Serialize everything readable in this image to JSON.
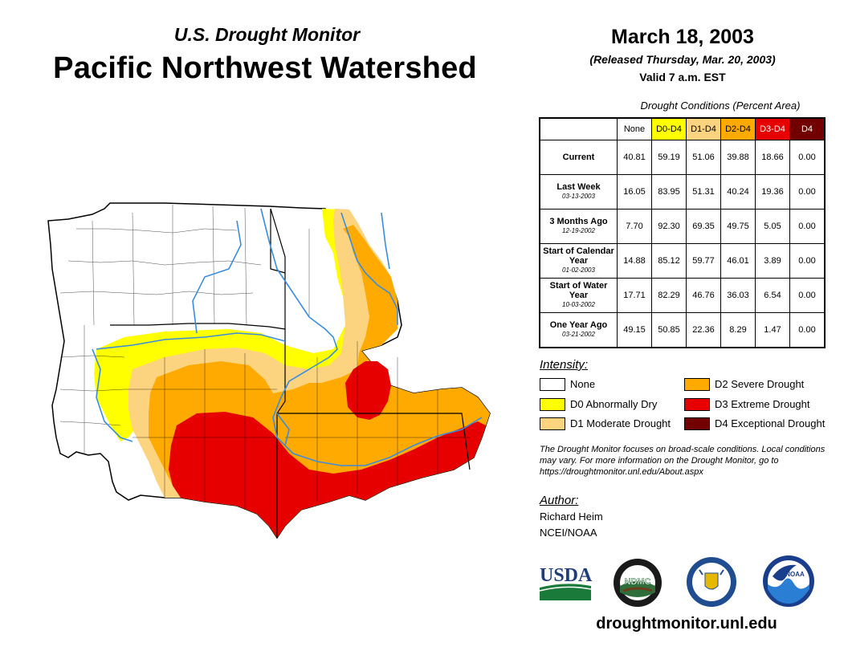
{
  "header": {
    "subtitle": "U.S. Drought Monitor",
    "title": "Pacific Northwest Watershed",
    "date": "March 18, 2003",
    "released": "(Released Thursday, Mar. 20, 2003)",
    "valid": "Valid 7 a.m. EST"
  },
  "stats_table": {
    "caption": "Drought Conditions (Percent Area)",
    "columns": [
      "None",
      "D0-D4",
      "D1-D4",
      "D2-D4",
      "D3-D4",
      "D4"
    ],
    "column_colors": [
      "#ffffff",
      "#ffff00",
      "#fcd37f",
      "#ffaa00",
      "#e60000",
      "#730000"
    ],
    "column_text_colors": [
      "#000000",
      "#000000",
      "#000000",
      "#000000",
      "#ffffff",
      "#ffffff"
    ],
    "rows": [
      {
        "label": "Current",
        "date": "",
        "values": [
          "40.81",
          "59.19",
          "51.06",
          "39.88",
          "18.66",
          "0.00"
        ]
      },
      {
        "label": "Last Week",
        "date": "03-13-2003",
        "values": [
          "16.05",
          "83.95",
          "51.31",
          "40.24",
          "19.36",
          "0.00"
        ]
      },
      {
        "label": "3 Months Ago",
        "date": "12-19-2002",
        "values": [
          "7.70",
          "92.30",
          "69.35",
          "49.75",
          "5.05",
          "0.00"
        ]
      },
      {
        "label": "Start of Calendar Year",
        "date": "01-02-2003",
        "values": [
          "14.88",
          "85.12",
          "59.77",
          "46.01",
          "3.89",
          "0.00"
        ]
      },
      {
        "label": "Start of Water Year",
        "date": "10-03-2002",
        "values": [
          "17.71",
          "82.29",
          "46.76",
          "36.03",
          "6.54",
          "0.00"
        ]
      },
      {
        "label": "One Year Ago",
        "date": "03-21-2002",
        "values": [
          "49.15",
          "50.85",
          "22.36",
          "8.29",
          "1.47",
          "0.00"
        ]
      }
    ]
  },
  "legend": {
    "title": "Intensity:",
    "items": [
      {
        "label": "None",
        "color": "#ffffff"
      },
      {
        "label": "D0 Abnormally Dry",
        "color": "#ffff00"
      },
      {
        "label": "D1 Moderate Drought",
        "color": "#fcd37f"
      },
      {
        "label": "D2 Severe Drought",
        "color": "#ffaa00"
      },
      {
        "label": "D3 Extreme Drought",
        "color": "#e60000"
      },
      {
        "label": "D4 Exceptional Drought",
        "color": "#730000"
      }
    ]
  },
  "note": "The Drought Monitor focuses on broad-scale conditions. Local conditions may vary. For more information on the Drought Monitor, go to https://droughtmonitor.unl.edu/About.aspx",
  "author": {
    "label": "Author:",
    "name": "Richard Heim",
    "org": "NCEI/NOAA"
  },
  "logos": {
    "usda": "USDA",
    "ndmc": "NDMC",
    "noaa": "NOAA"
  },
  "website": "droughtmonitor.unl.edu"
}
